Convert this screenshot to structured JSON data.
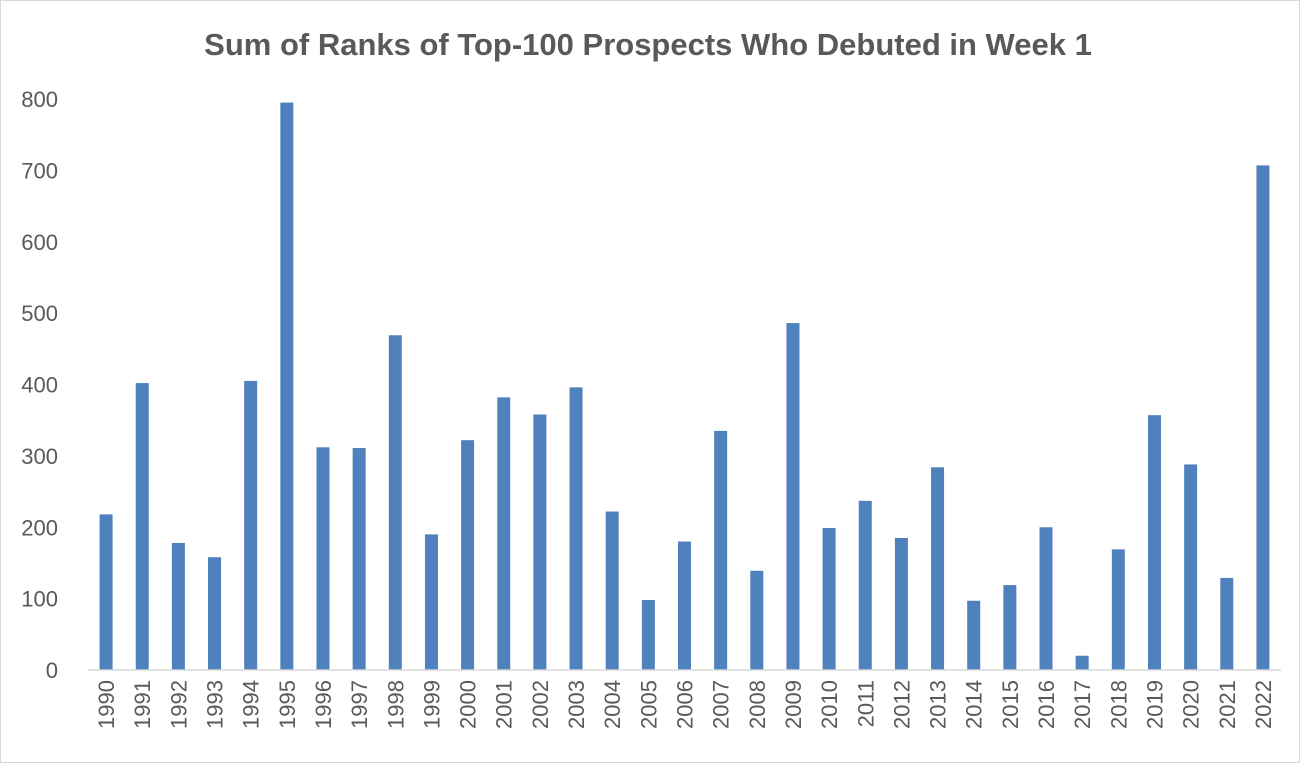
{
  "chart_data": {
    "type": "bar",
    "title": "Sum of Ranks of Top-100 Prospects Who Debuted in Week 1",
    "xlabel": "",
    "ylabel": "",
    "ylim": [
      0,
      800
    ],
    "yticks": [
      0,
      100,
      200,
      300,
      400,
      500,
      600,
      700,
      800
    ],
    "grid": false,
    "legend": "none",
    "bar_color": "#4f81bd",
    "categories": [
      "1990",
      "1991",
      "1992",
      "1993",
      "1994",
      "1995",
      "1996",
      "1997",
      "1998",
      "1999",
      "2000",
      "2001",
      "2002",
      "2003",
      "2004",
      "2005",
      "2006",
      "2007",
      "2008",
      "2009",
      "2010",
      "2011",
      "2012",
      "2013",
      "2014",
      "2015",
      "2016",
      "2017",
      "2018",
      "2019",
      "2020",
      "2021",
      "2022"
    ],
    "values": [
      218,
      402,
      178,
      158,
      405,
      795,
      312,
      311,
      469,
      190,
      322,
      382,
      358,
      396,
      222,
      98,
      180,
      335,
      139,
      486,
      199,
      237,
      185,
      284,
      97,
      119,
      200,
      20,
      169,
      357,
      288,
      129,
      707
    ]
  }
}
